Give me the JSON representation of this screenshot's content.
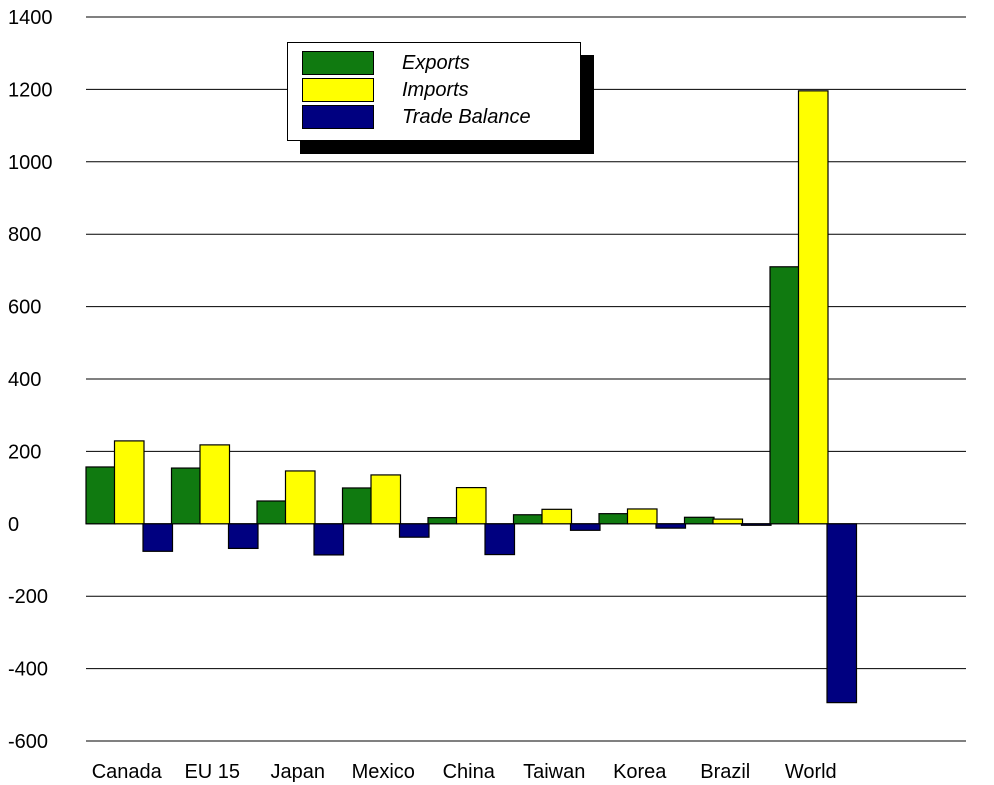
{
  "chart_data": {
    "type": "bar",
    "categories": [
      "Canada",
      "EU 15",
      "Japan",
      "Mexico",
      "China",
      "Taiwan",
      "Korea",
      "Brazil",
      "World"
    ],
    "series": [
      {
        "name": "Exports",
        "color": "#107a10",
        "values": [
          157,
          154,
          63,
          99,
          17,
          25,
          28,
          18,
          710
        ]
      },
      {
        "name": "Imports",
        "color": "#ffff00",
        "values": [
          229,
          218,
          146,
          135,
          100,
          40,
          41,
          13,
          1196
        ]
      },
      {
        "name": "Trade Balance",
        "color": "#000080",
        "values": [
          -76,
          -68,
          -86,
          -37,
          -85,
          -18,
          -12,
          -1,
          -494
        ]
      }
    ],
    "y_ticks": [
      "1400",
      "1200",
      "1000",
      "800",
      "600",
      "400",
      "200",
      "0",
      "-200",
      "-400",
      "-600"
    ],
    "ylim": [
      -600,
      1400
    ],
    "grid": true,
    "legend_position": "top-left"
  }
}
